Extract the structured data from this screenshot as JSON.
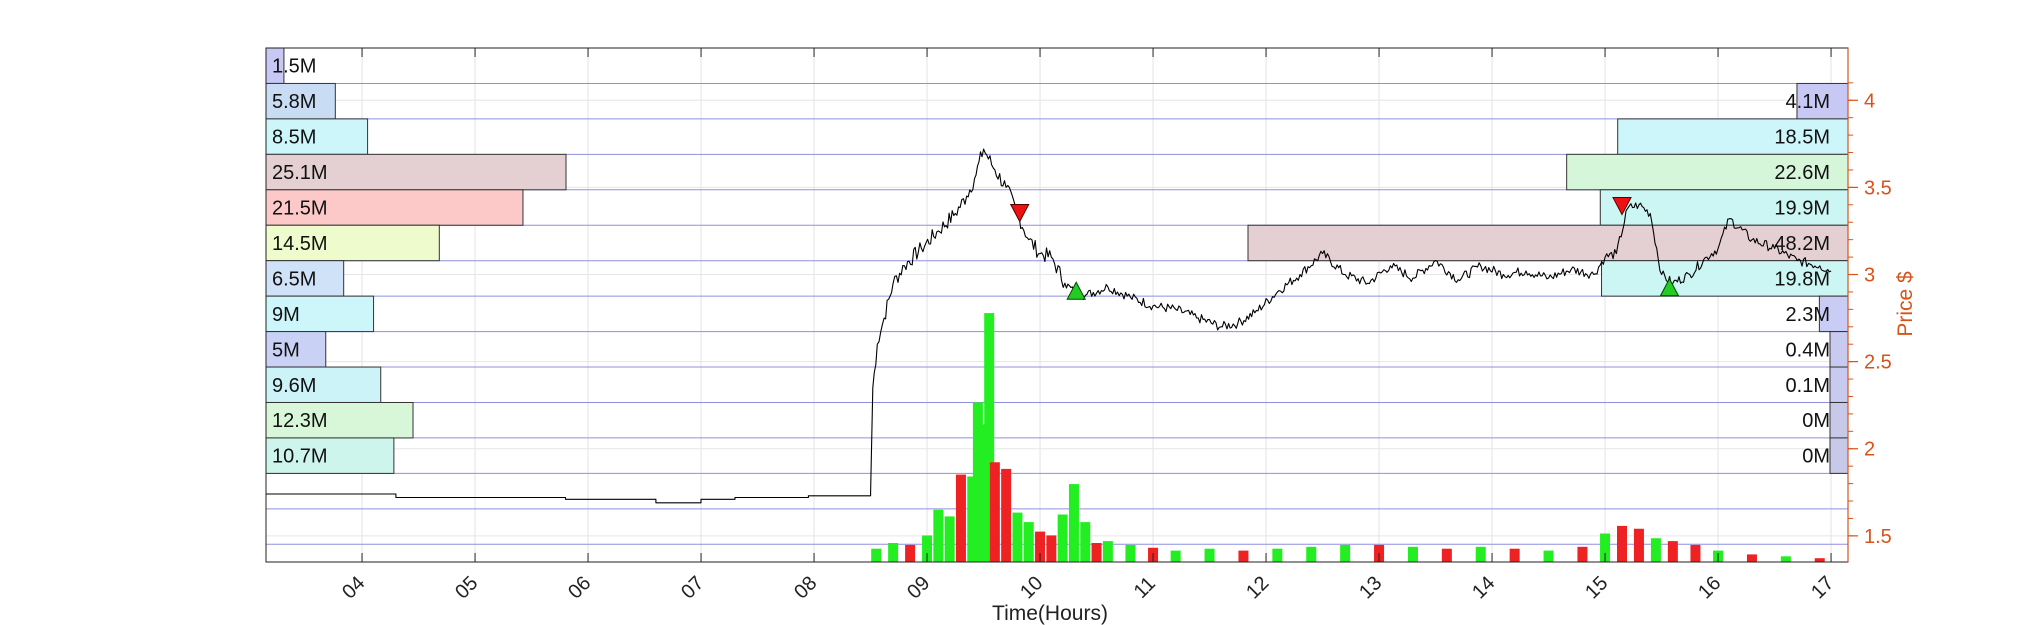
{
  "chart_data": {
    "type": "line",
    "xlabel": "Time(Hours)",
    "ylabel": "Price $",
    "x_ticks": [
      "04",
      "05",
      "06",
      "07",
      "08",
      "09",
      "10",
      "11",
      "12",
      "13",
      "14",
      "15",
      "16",
      "17"
    ],
    "xlim": [
      3.15,
      17.15
    ],
    "y_ticks": [
      1.5,
      2,
      2.5,
      3,
      3.5,
      4
    ],
    "ylim": [
      1.35,
      4.3
    ],
    "grid": true,
    "colors": {
      "price": "#000000",
      "right_axis": "#d95319",
      "band_lines": "#8f8fe0",
      "volume_up": "#22ee22",
      "volume_down": "#ee2222",
      "buy_marker": "#22cc22",
      "sell_marker": "#ee1111"
    },
    "price_series": {
      "name": "Price",
      "x": [
        3.15,
        4.3,
        4.3,
        5.8,
        5.8,
        6.6,
        6.6,
        7.0,
        7.0,
        7.3,
        7.3,
        7.95,
        7.95,
        8.5,
        8.5,
        8.52,
        8.56,
        8.62,
        8.7,
        8.8,
        8.95,
        9.1,
        9.25,
        9.35,
        9.42,
        9.5,
        9.6,
        9.7,
        9.8,
        9.9,
        10.0,
        10.1,
        10.22,
        10.3,
        10.4,
        10.6,
        10.8,
        11.0,
        11.2,
        11.4,
        11.6,
        11.75,
        11.9,
        12.1,
        12.3,
        12.5,
        12.7,
        12.9,
        13.1,
        13.3,
        13.5,
        13.7,
        13.9,
        14.1,
        14.3,
        14.5,
        14.7,
        14.9,
        15.0,
        15.1,
        15.2,
        15.3,
        15.4,
        15.5,
        15.6,
        15.75,
        15.9,
        16.0,
        16.1,
        16.3,
        16.5,
        16.7,
        16.9,
        17.0
      ],
      "y": [
        1.74,
        1.74,
        1.72,
        1.72,
        1.71,
        1.71,
        1.69,
        1.69,
        1.71,
        1.71,
        1.72,
        1.72,
        1.73,
        1.73,
        1.75,
        2.35,
        2.6,
        2.75,
        2.95,
        3.05,
        3.15,
        3.25,
        3.35,
        3.45,
        3.55,
        3.72,
        3.6,
        3.5,
        3.35,
        3.2,
        3.12,
        3.1,
        2.95,
        2.9,
        2.88,
        2.93,
        2.87,
        2.82,
        2.8,
        2.75,
        2.7,
        2.72,
        2.78,
        2.9,
        3.0,
        3.12,
        3.0,
        2.95,
        3.05,
        2.98,
        3.08,
        2.97,
        3.05,
        3.0,
        3.02,
        2.98,
        3.03,
        3.0,
        3.1,
        3.12,
        3.38,
        3.4,
        3.35,
        3.0,
        2.95,
        3.0,
        3.1,
        3.15,
        3.32,
        3.2,
        3.15,
        3.08,
        3.05,
        3.02
      ]
    },
    "trade_markers": [
      {
        "type": "sell",
        "x": 9.82,
        "y": 3.35
      },
      {
        "type": "buy",
        "x": 10.32,
        "y": 2.91
      },
      {
        "type": "sell",
        "x": 15.15,
        "y": 3.39
      },
      {
        "type": "buy",
        "x": 15.57,
        "y": 2.93
      }
    ],
    "volume_profile_left": [
      {
        "label": "1.5M",
        "value": 1.5,
        "color": "#c8c8f4"
      },
      {
        "label": "5.8M",
        "value": 5.8,
        "color": "#c8dcf4"
      },
      {
        "label": "8.5M",
        "value": 8.5,
        "color": "#ccf6f9"
      },
      {
        "label": "25.1M",
        "value": 25.1,
        "color": "#e4cfd3"
      },
      {
        "label": "21.5M",
        "value": 21.5,
        "color": "#fcc8c8"
      },
      {
        "label": "14.5M",
        "value": 14.5,
        "color": "#eefbcc"
      },
      {
        "label": "6.5M",
        "value": 6.5,
        "color": "#cfe2f7"
      },
      {
        "label": "9M",
        "value": 9,
        "color": "#ccf6f9"
      },
      {
        "label": "5M",
        "value": 5,
        "color": "#c9d2f5"
      },
      {
        "label": "9.6M",
        "value": 9.6,
        "color": "#ccf4f8"
      },
      {
        "label": "12.3M",
        "value": 12.3,
        "color": "#d8f7d8"
      },
      {
        "label": "10.7M",
        "value": 10.7,
        "color": "#cef5ec"
      }
    ],
    "volume_profile_right": [
      {
        "label": "4.1M",
        "value": 4.1,
        "color": "#c8c8f4"
      },
      {
        "label": "18.5M",
        "value": 18.5,
        "color": "#ccf6f9"
      },
      {
        "label": "22.6M",
        "value": 22.6,
        "color": "#d6f6da"
      },
      {
        "label": "19.9M",
        "value": 19.9,
        "color": "#ccf6f4"
      },
      {
        "label": "48.2M",
        "value": 48.2,
        "color": "#e4cfd3"
      },
      {
        "label": "19.8M",
        "value": 19.8,
        "color": "#ccf6f4"
      },
      {
        "label": "2.3M",
        "value": 2.3,
        "color": "#c9cdf5"
      },
      {
        "label": "0.4M",
        "value": 0.4,
        "color": "#c8cbef"
      },
      {
        "label": "0.1M",
        "value": 0.1,
        "color": "#c8cbef"
      },
      {
        "label": "0M",
        "value": 0,
        "color": "#c8c8e8"
      },
      {
        "label": "0M",
        "value": 0,
        "color": "#c8c8e8"
      }
    ],
    "volume_bars": {
      "x": [
        8.55,
        8.7,
        8.85,
        9.0,
        9.1,
        9.2,
        9.3,
        9.4,
        9.45,
        9.5,
        9.55,
        9.6,
        9.7,
        9.8,
        9.9,
        10.0,
        10.1,
        10.2,
        10.3,
        10.4,
        10.5,
        10.6,
        10.8,
        11.0,
        11.2,
        11.5,
        11.8,
        12.1,
        12.4,
        12.7,
        13.0,
        13.3,
        13.6,
        13.9,
        14.2,
        14.5,
        14.8,
        15.0,
        15.15,
        15.3,
        15.45,
        15.6,
        15.8,
        16.0,
        16.3,
        16.6,
        16.9
      ],
      "values": [
        14,
        20,
        18,
        28,
        55,
        48,
        92,
        90,
        168,
        145,
        262,
        105,
        98,
        52,
        42,
        32,
        28,
        50,
        82,
        42,
        20,
        22,
        18,
        15,
        12,
        14,
        12,
        14,
        16,
        18,
        18,
        16,
        14,
        16,
        14,
        12,
        16,
        30,
        38,
        35,
        25,
        22,
        18,
        12,
        8,
        6,
        4
      ],
      "direction": [
        "up",
        "up",
        "down",
        "up",
        "up",
        "up",
        "down",
        "up",
        "up",
        "up",
        "up",
        "down",
        "down",
        "up",
        "up",
        "down",
        "down",
        "up",
        "up",
        "up",
        "down",
        "up",
        "up",
        "down",
        "up",
        "up",
        "down",
        "up",
        "up",
        "up",
        "down",
        "up",
        "down",
        "up",
        "down",
        "up",
        "down",
        "up",
        "down",
        "down",
        "up",
        "down",
        "down",
        "up",
        "down",
        "up",
        "down"
      ]
    }
  }
}
